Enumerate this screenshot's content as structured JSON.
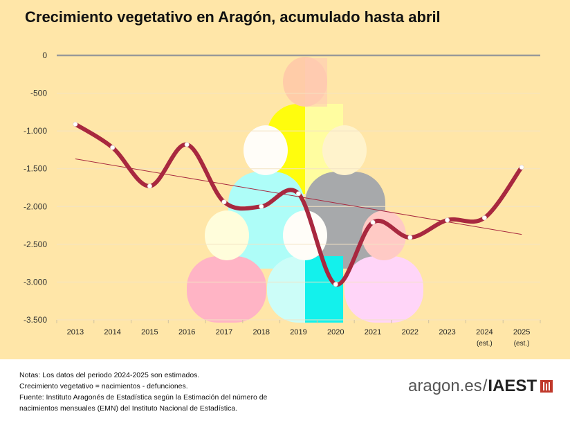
{
  "colors": {
    "background": "#ffe6a8",
    "line": "#a8283f",
    "trend": "#a8283f",
    "axis": "#999999",
    "grid": "#f3e3c4"
  },
  "chart_data": {
    "type": "line",
    "title": "Crecimiento vegetativo en Aragón, acumulado hasta abril",
    "xlabel": "",
    "ylabel": "",
    "categories": [
      "2013",
      "2014",
      "2015",
      "2016",
      "2017",
      "2018",
      "2019",
      "2020",
      "2021",
      "2022",
      "2023",
      "2024",
      "2025"
    ],
    "category_sublabels": [
      "",
      "",
      "",
      "",
      "",
      "",
      "",
      "",
      "",
      "",
      "",
      "(est.)",
      "(est.)"
    ],
    "series": [
      {
        "name": "Crecimiento vegetativo",
        "values": [
          -910,
          -1220,
          -1730,
          -1180,
          -1940,
          -2000,
          -1830,
          -3030,
          -2210,
          -2410,
          -2180,
          -2150,
          -1480
        ]
      }
    ],
    "trendline": {
      "start": -1370,
      "end": -2370
    },
    "ylim": [
      -3500,
      0
    ],
    "yticks": [
      0,
      -500,
      -1000,
      -1500,
      -2000,
      -2500,
      -3000,
      -3500
    ],
    "ytick_labels": [
      "0",
      "-500",
      "-1.000",
      "-1.500",
      "-2.000",
      "-2.500",
      "-3.000",
      "-3.500"
    ],
    "grid": true,
    "legend": "none"
  },
  "footer": {
    "notes": [
      "Notas: Los datos del periodo 2024-2025 son estimados.",
      "Crecimiento vegetativo = nacimientos - defunciones.",
      "Fuente: Instituto Aragonés de Estadística según la Estimación del número de",
      "nacimientos mensuales (EMN) del Instituto Nacional de Estadística."
    ],
    "brand_site": "aragon.es",
    "brand_separator": "/",
    "brand_org": "IAEST"
  }
}
